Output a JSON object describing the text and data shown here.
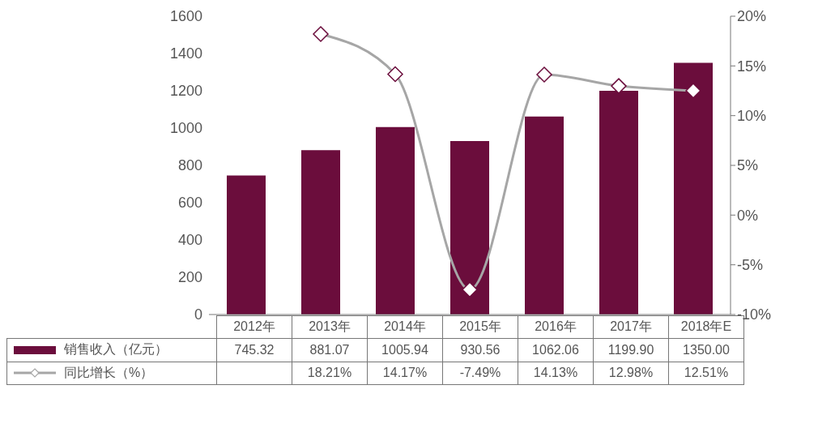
{
  "chart_data": {
    "type": "bar",
    "categories": [
      "2012年",
      "2013年",
      "2014年",
      "2015年",
      "2016年",
      "2017年",
      "2018年E"
    ],
    "series": [
      {
        "name": "销售收入（亿元）",
        "color": "#6b0d3c",
        "values": [
          745.32,
          881.07,
          1005.94,
          930.56,
          1062.06,
          1199.9,
          1350.0
        ],
        "value_labels": [
          "745.32",
          "881.07",
          "1005.94",
          "930.56",
          "1062.06",
          "1199.90",
          "1350.00"
        ]
      },
      {
        "name": "同比增长（%）",
        "type": "line",
        "axis": "y2",
        "color": "#a6a6a6",
        "values": [
          null,
          18.21,
          14.17,
          -7.49,
          14.13,
          12.98,
          12.51
        ],
        "value_labels": [
          null,
          "18.21%",
          "14.17%",
          "-7.49%",
          "14.13%",
          "12.98%",
          "12.51%"
        ]
      }
    ],
    "ylim": [
      0,
      1600
    ],
    "yticks": [
      0,
      200,
      400,
      600,
      800,
      1000,
      1200,
      1400,
      1600
    ],
    "y2lim": [
      -10,
      20
    ],
    "y2ticks": [
      {
        "value": -10,
        "label": "-10%"
      },
      {
        "value": -5,
        "label": "-5%"
      },
      {
        "value": 0,
        "label": "0%"
      },
      {
        "value": 5,
        "label": "5%"
      },
      {
        "value": 10,
        "label": "10%"
      },
      {
        "value": 15,
        "label": "15%"
      },
      {
        "value": 20,
        "label": "20%"
      }
    ],
    "marker": "diamond",
    "legend": "bottom"
  }
}
